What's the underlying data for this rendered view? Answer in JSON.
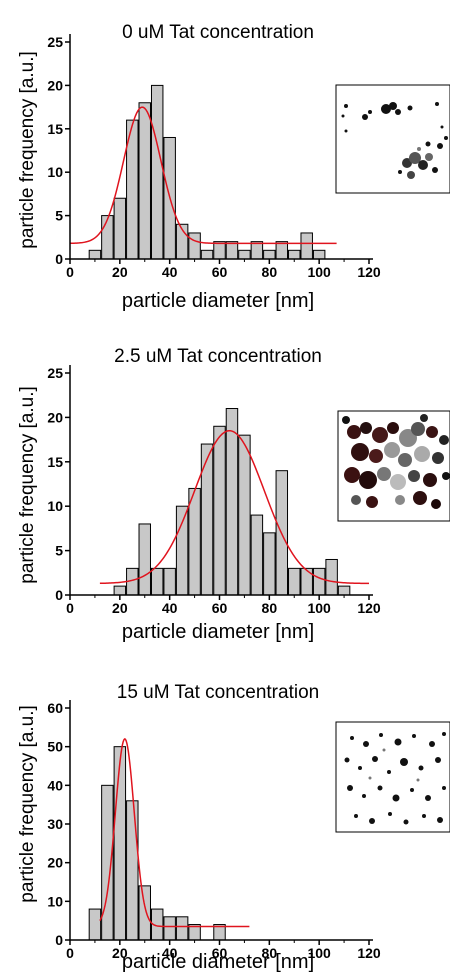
{
  "chart_data": [
    {
      "type": "bar",
      "title": "0 uM Tat concentration",
      "xlabel": "particle diameter [nm]",
      "ylabel": "particle frequency [a.u.]",
      "xlim": [
        0,
        120
      ],
      "ylim": [
        0,
        25
      ],
      "xticks": [
        "0",
        "20",
        "40",
        "60",
        "80",
        "100",
        "120"
      ],
      "yticks": [
        "0",
        "5",
        "10",
        "15",
        "20",
        "25"
      ],
      "bin_width": 5,
      "x": [
        10,
        15,
        20,
        25,
        30,
        35,
        40,
        45,
        50,
        55,
        60,
        65,
        70,
        75,
        80,
        85,
        90,
        95,
        100,
        105
      ],
      "values": [
        1,
        5,
        7,
        16,
        18,
        20,
        14,
        4,
        3,
        1,
        2,
        2,
        1,
        2,
        1,
        2,
        1,
        3,
        1,
        0
      ],
      "fit": {
        "type": "gaussian",
        "baseline": 1.8,
        "center": 29,
        "sigma": 7.5,
        "peak": 17.5,
        "range": [
          0,
          107
        ]
      },
      "fit_color": "#e0141e",
      "bar_color": "#c8c8c8",
      "inset_image": "tem-micrograph-sparse-clusters"
    },
    {
      "type": "bar",
      "title": "2.5 uM Tat concentration",
      "xlabel": "particle diameter [nm]",
      "ylabel": "particle frequency [a.u.]",
      "xlim": [
        0,
        120
      ],
      "ylim": [
        0,
        25
      ],
      "xticks": [
        "0",
        "20",
        "40",
        "60",
        "80",
        "100",
        "120"
      ],
      "yticks": [
        "0",
        "5",
        "10",
        "15",
        "20",
        "25"
      ],
      "bin_width": 5,
      "x": [
        20,
        25,
        30,
        35,
        40,
        45,
        50,
        55,
        60,
        65,
        70,
        75,
        80,
        85,
        90,
        95,
        100,
        105,
        110,
        115
      ],
      "values": [
        1,
        3,
        8,
        3,
        3,
        10,
        12,
        17,
        19,
        21,
        18,
        9,
        7,
        14,
        3,
        3,
        3,
        4,
        1,
        0
      ],
      "fit": {
        "type": "gaussian",
        "baseline": 1.3,
        "center": 64,
        "sigma": 14,
        "peak": 18.5,
        "range": [
          12,
          120
        ]
      },
      "fit_color": "#e0141e",
      "bar_color": "#c8c8c8",
      "inset_image": "tem-micrograph-dense-aggregates"
    },
    {
      "type": "bar",
      "title": "15 uM Tat concentration",
      "xlabel": "particle diameter [nm]",
      "ylabel": "particle frequency [a.u.]",
      "xlim": [
        0,
        120
      ],
      "ylim": [
        0,
        60
      ],
      "xticks": [
        "0",
        "20",
        "40",
        "60",
        "80",
        "100",
        "120"
      ],
      "yticks": [
        "0",
        "10",
        "20",
        "30",
        "40",
        "50",
        "60"
      ],
      "bin_width": 5,
      "x": [
        10,
        15,
        20,
        25,
        30,
        35,
        40,
        45,
        50,
        55,
        60,
        65
      ],
      "values": [
        8,
        40,
        50,
        36,
        14,
        8,
        6,
        6,
        4,
        0,
        4,
        0
      ],
      "fit": {
        "type": "gaussian",
        "baseline": 3.5,
        "center": 22,
        "sigma": 3.8,
        "peak": 52,
        "range": [
          12,
          72
        ]
      },
      "fit_color": "#e0141e",
      "bar_color": "#c8c8c8",
      "inset_image": "tem-micrograph-small-dots"
    }
  ]
}
